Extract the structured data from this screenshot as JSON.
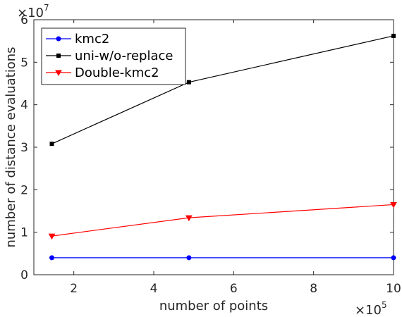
{
  "chart_data": {
    "type": "line",
    "xlabel": "number of points",
    "ylabel": "number of distance evaluations",
    "x_exponent": "×10",
    "x_exponent_power": "5",
    "y_exponent": "×10",
    "y_exponent_power": "7",
    "xlim": [
      1.0,
      10.0
    ],
    "ylim": [
      0,
      6
    ],
    "x_ticks": [
      2,
      4,
      6,
      8,
      10
    ],
    "x_tick_labels": [
      "2",
      "4",
      "6",
      "8",
      "10"
    ],
    "y_ticks": [
      0,
      1,
      2,
      3,
      4,
      5,
      6
    ],
    "y_tick_labels": [
      "0",
      "1",
      "2",
      "3",
      "4",
      "5",
      "6"
    ],
    "grid": false,
    "legend_position": "top-left",
    "x": [
      1.45,
      4.88,
      10.0
    ],
    "series": [
      {
        "name": "kmc2",
        "color": "#0000ff",
        "marker": "circle",
        "values": [
          0.4,
          0.4,
          0.4
        ]
      },
      {
        "name": "uni-w/o-replace",
        "color": "#000000",
        "marker": "square",
        "values": [
          3.08,
          4.53,
          5.62
        ]
      },
      {
        "name": "Double-kmc2",
        "color": "#ff0000",
        "marker": "triangle-down",
        "values": [
          0.91,
          1.34,
          1.65
        ]
      }
    ]
  }
}
